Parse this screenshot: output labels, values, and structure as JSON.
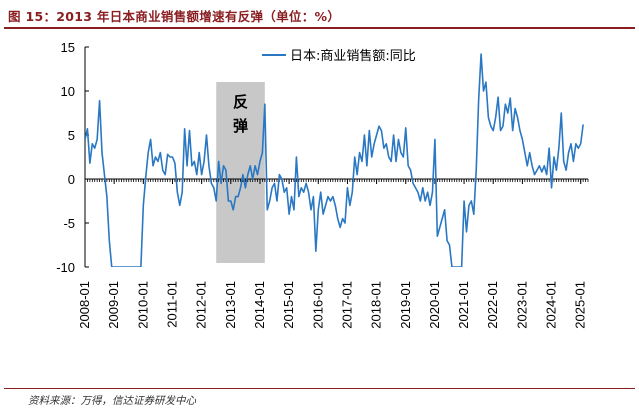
{
  "figure": {
    "title": "图 15：2013 年日本商业销售额增速有反弹（单位：%）",
    "source": "资料来源：万得，信达证券研发中心"
  },
  "colors": {
    "title": "#8a1f22",
    "line": "#2a78c3",
    "shade": "#c8c8c8",
    "axis": "#000000"
  },
  "chart_data": {
    "type": "line",
    "title": "",
    "xlabel": "",
    "ylabel": "",
    "ylim": [
      -10,
      15
    ],
    "yticks": [
      -10,
      -5,
      0,
      5,
      10,
      15
    ],
    "xlim": [
      "2008-01",
      "2025-04"
    ],
    "xticks": [
      "2008-01",
      "2009-01",
      "2010-01",
      "2011-01",
      "2012-01",
      "2013-01",
      "2014-01",
      "2015-01",
      "2016-01",
      "2017-01",
      "2018-01",
      "2019-01",
      "2020-01",
      "2021-01",
      "2022-01",
      "2023-01",
      "2024-01",
      "2025-01"
    ],
    "grid": false,
    "legend": "top-right",
    "annotation": {
      "text": "反弹",
      "from": "2012-07",
      "to": "2014-03"
    },
    "series": [
      {
        "name": "日本:商业销售额:同比",
        "values": [
          [
            "2008-01",
            4.5
          ],
          [
            "2008-02",
            5.7
          ],
          [
            "2008-03",
            1.8
          ],
          [
            "2008-04",
            4.0
          ],
          [
            "2008-05",
            3.5
          ],
          [
            "2008-06",
            4.5
          ],
          [
            "2008-07",
            8.9
          ],
          [
            "2008-08",
            3.0
          ],
          [
            "2008-09",
            0.5
          ],
          [
            "2008-10",
            -2.0
          ],
          [
            "2008-11",
            -7.0
          ],
          [
            "2008-12",
            -10.0
          ],
          [
            "2009-01",
            -10.0
          ],
          [
            "2009-02",
            -10.0
          ],
          [
            "2009-03",
            -10.0
          ],
          [
            "2009-04",
            -10.0
          ],
          [
            "2009-05",
            -10.0
          ],
          [
            "2009-06",
            -10.0
          ],
          [
            "2009-07",
            -10.0
          ],
          [
            "2009-08",
            -10.0
          ],
          [
            "2009-09",
            -10.0
          ],
          [
            "2009-10",
            -10.0
          ],
          [
            "2009-11",
            -10.0
          ],
          [
            "2009-12",
            -10.0
          ],
          [
            "2010-01",
            -3.0
          ],
          [
            "2010-02",
            0.2
          ],
          [
            "2010-03",
            3.0
          ],
          [
            "2010-04",
            4.5
          ],
          [
            "2010-05",
            1.5
          ],
          [
            "2010-06",
            2.5
          ],
          [
            "2010-07",
            2.0
          ],
          [
            "2010-08",
            3.0
          ],
          [
            "2010-09",
            1.0
          ],
          [
            "2010-10",
            0.5
          ],
          [
            "2010-11",
            2.8
          ],
          [
            "2010-12",
            2.5
          ],
          [
            "2011-01",
            2.5
          ],
          [
            "2011-02",
            1.8
          ],
          [
            "2011-03",
            -1.5
          ],
          [
            "2011-04",
            -3.0
          ],
          [
            "2011-05",
            -1.5
          ],
          [
            "2011-06",
            5.7
          ],
          [
            "2011-07",
            1.5
          ],
          [
            "2011-08",
            5.5
          ],
          [
            "2011-09",
            1.5
          ],
          [
            "2011-10",
            2.0
          ],
          [
            "2011-11",
            0.5
          ],
          [
            "2011-12",
            3.0
          ],
          [
            "2012-01",
            0.5
          ],
          [
            "2012-02",
            2.0
          ],
          [
            "2012-03",
            5.0
          ],
          [
            "2012-04",
            1.5
          ],
          [
            "2012-05",
            -0.5
          ],
          [
            "2012-06",
            -1.0
          ],
          [
            "2012-07",
            -2.5
          ],
          [
            "2012-08",
            2.0
          ],
          [
            "2012-09",
            -0.5
          ],
          [
            "2012-10",
            1.5
          ],
          [
            "2012-11",
            1.0
          ],
          [
            "2012-12",
            -2.5
          ],
          [
            "2013-01",
            -2.5
          ],
          [
            "2013-02",
            -3.5
          ],
          [
            "2013-03",
            -2.0
          ],
          [
            "2013-04",
            -2.0
          ],
          [
            "2013-05",
            -1.0
          ],
          [
            "2013-06",
            0.5
          ],
          [
            "2013-07",
            -1.0
          ],
          [
            "2013-08",
            0.5
          ],
          [
            "2013-09",
            1.5
          ],
          [
            "2013-10",
            0.0
          ],
          [
            "2013-11",
            1.5
          ],
          [
            "2013-12",
            0.5
          ],
          [
            "2014-01",
            2.0
          ],
          [
            "2014-02",
            3.0
          ],
          [
            "2014-03",
            8.5
          ],
          [
            "2014-04",
            -3.5
          ],
          [
            "2014-05",
            -2.5
          ],
          [
            "2014-06",
            -1.0
          ],
          [
            "2014-07",
            -0.5
          ],
          [
            "2014-08",
            -2.5
          ],
          [
            "2014-09",
            0.5
          ],
          [
            "2014-10",
            0.0
          ],
          [
            "2014-11",
            -1.5
          ],
          [
            "2014-12",
            -1.0
          ],
          [
            "2015-01",
            -4.0
          ],
          [
            "2015-02",
            -2.0
          ],
          [
            "2015-03",
            -3.5
          ],
          [
            "2015-04",
            2.5
          ],
          [
            "2015-05",
            -2.0
          ],
          [
            "2015-06",
            -1.0
          ],
          [
            "2015-07",
            -1.5
          ],
          [
            "2015-08",
            -0.5
          ],
          [
            "2015-09",
            -1.5
          ],
          [
            "2015-10",
            -3.5
          ],
          [
            "2015-11",
            -2.0
          ],
          [
            "2015-12",
            -8.2
          ],
          [
            "2016-01",
            -3.5
          ],
          [
            "2016-02",
            -1.5
          ],
          [
            "2016-03",
            -4.0
          ],
          [
            "2016-04",
            -3.0
          ],
          [
            "2016-05",
            -2.0
          ],
          [
            "2016-06",
            -2.5
          ],
          [
            "2016-07",
            -2.0
          ],
          [
            "2016-08",
            -3.0
          ],
          [
            "2016-09",
            -4.5
          ],
          [
            "2016-10",
            -5.5
          ],
          [
            "2016-11",
            -4.5
          ],
          [
            "2016-12",
            -5.0
          ],
          [
            "2017-01",
            -1.0
          ],
          [
            "2017-02",
            -3.0
          ],
          [
            "2017-03",
            -1.5
          ],
          [
            "2017-04",
            2.5
          ],
          [
            "2017-05",
            0.5
          ],
          [
            "2017-06",
            3.0
          ],
          [
            "2017-07",
            2.0
          ],
          [
            "2017-08",
            5.0
          ],
          [
            "2017-09",
            1.5
          ],
          [
            "2017-10",
            5.5
          ],
          [
            "2017-11",
            2.5
          ],
          [
            "2017-12",
            4.0
          ],
          [
            "2018-01",
            5.0
          ],
          [
            "2018-02",
            6.0
          ],
          [
            "2018-03",
            5.5
          ],
          [
            "2018-04",
            3.5
          ],
          [
            "2018-05",
            4.0
          ],
          [
            "2018-06",
            2.5
          ],
          [
            "2018-07",
            2.0
          ],
          [
            "2018-08",
            5.0
          ],
          [
            "2018-09",
            2.0
          ],
          [
            "2018-10",
            4.5
          ],
          [
            "2018-11",
            3.0
          ],
          [
            "2018-12",
            2.5
          ],
          [
            "2019-01",
            5.8
          ],
          [
            "2019-02",
            1.5
          ],
          [
            "2019-03",
            1.0
          ],
          [
            "2019-04",
            -0.5
          ],
          [
            "2019-05",
            -1.0
          ],
          [
            "2019-06",
            -1.5
          ],
          [
            "2019-07",
            -2.5
          ],
          [
            "2019-08",
            -1.0
          ],
          [
            "2019-09",
            -2.5
          ],
          [
            "2019-10",
            -1.5
          ],
          [
            "2019-11",
            -3.0
          ],
          [
            "2019-12",
            -1.5
          ],
          [
            "2020-01",
            4.5
          ],
          [
            "2020-02",
            -6.5
          ],
          [
            "2020-03",
            -5.5
          ],
          [
            "2020-04",
            -4.5
          ],
          [
            "2020-05",
            -3.5
          ],
          [
            "2020-06",
            -7.0
          ],
          [
            "2020-07",
            -7.5
          ],
          [
            "2020-08",
            -10.0
          ],
          [
            "2020-09",
            -10.0
          ],
          [
            "2020-10",
            -10.0
          ],
          [
            "2020-11",
            -10.0
          ],
          [
            "2020-12",
            -10.0
          ],
          [
            "2021-01",
            -2.5
          ],
          [
            "2021-02",
            -6.0
          ],
          [
            "2021-03",
            -3.0
          ],
          [
            "2021-04",
            -2.5
          ],
          [
            "2021-05",
            -4.0
          ],
          [
            "2021-06",
            1.0
          ],
          [
            "2021-07",
            9.0
          ],
          [
            "2021-08",
            14.2
          ],
          [
            "2021-09",
            10.0
          ],
          [
            "2021-10",
            11.0
          ],
          [
            "2021-11",
            7.0
          ],
          [
            "2021-12",
            6.0
          ],
          [
            "2022-01",
            5.5
          ],
          [
            "2022-02",
            7.0
          ],
          [
            "2022-03",
            9.3
          ],
          [
            "2022-04",
            5.5
          ],
          [
            "2022-05",
            6.0
          ],
          [
            "2022-06",
            8.5
          ],
          [
            "2022-07",
            7.5
          ],
          [
            "2022-08",
            9.2
          ],
          [
            "2022-09",
            5.5
          ],
          [
            "2022-10",
            8.0
          ],
          [
            "2022-11",
            7.0
          ],
          [
            "2022-12",
            5.5
          ],
          [
            "2023-01",
            4.5
          ],
          [
            "2023-02",
            3.0
          ],
          [
            "2023-03",
            1.5
          ],
          [
            "2023-04",
            3.0
          ],
          [
            "2023-05",
            1.5
          ],
          [
            "2023-06",
            0.5
          ],
          [
            "2023-07",
            1.0
          ],
          [
            "2023-08",
            1.5
          ],
          [
            "2023-09",
            0.8
          ],
          [
            "2023-10",
            1.5
          ],
          [
            "2023-11",
            0.5
          ],
          [
            "2023-12",
            3.5
          ],
          [
            "2024-01",
            -1.0
          ],
          [
            "2024-02",
            2.5
          ],
          [
            "2024-03",
            1.0
          ],
          [
            "2024-04",
            3.5
          ],
          [
            "2024-05",
            7.5
          ],
          [
            "2024-06",
            2.0
          ],
          [
            "2024-07",
            1.0
          ],
          [
            "2024-08",
            3.0
          ],
          [
            "2024-09",
            4.0
          ],
          [
            "2024-10",
            2.0
          ],
          [
            "2024-11",
            4.0
          ],
          [
            "2024-12",
            3.5
          ],
          [
            "2025-01",
            4.0
          ],
          [
            "2025-02",
            6.2
          ]
        ]
      }
    ]
  }
}
